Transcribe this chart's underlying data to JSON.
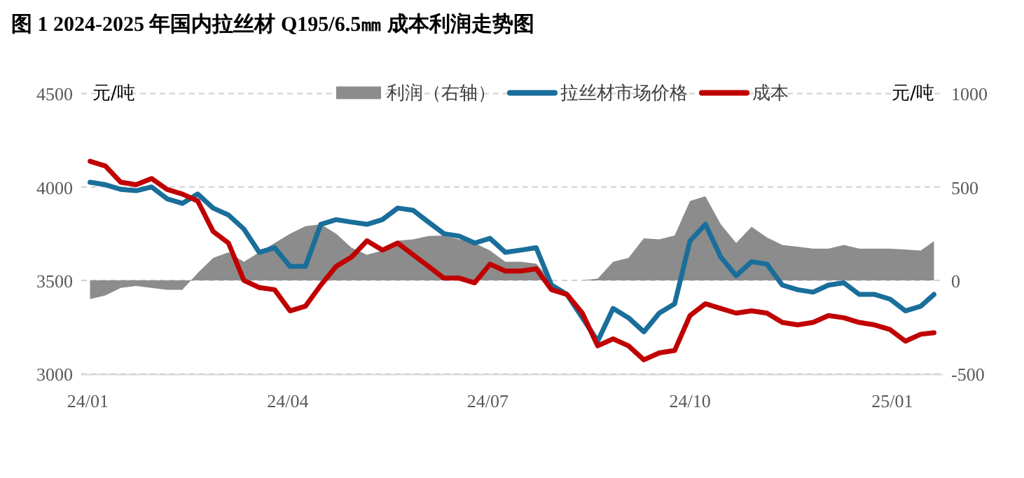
{
  "chart_data": {
    "type": "line",
    "title": "图 1 2024-2025 年国内拉丝材 Q195/6.5㎜ 成本利润走势图",
    "ylabel": "元/吨",
    "y2label": "元/吨",
    "x": [
      "2024-01-02",
      "2024-01-09",
      "2024-01-16",
      "2024-01-23",
      "2024-01-30",
      "2024-02-06",
      "2024-02-13",
      "2024-02-20",
      "2024-02-27",
      "2024-03-05",
      "2024-03-12",
      "2024-03-19",
      "2024-03-26",
      "2024-04-02",
      "2024-04-09",
      "2024-04-16",
      "2024-04-23",
      "2024-04-30",
      "2024-05-07",
      "2024-05-14",
      "2024-05-21",
      "2024-05-28",
      "2024-06-04",
      "2024-06-11",
      "2024-06-18",
      "2024-06-25",
      "2024-07-02",
      "2024-07-09",
      "2024-07-16",
      "2024-07-23",
      "2024-07-30",
      "2024-08-06",
      "2024-08-13",
      "2024-08-20",
      "2024-08-27",
      "2024-09-03",
      "2024-09-10",
      "2024-09-17",
      "2024-09-24",
      "2024-10-01",
      "2024-10-08",
      "2024-10-15",
      "2024-10-22",
      "2024-10-29",
      "2024-11-05",
      "2024-11-12",
      "2024-11-19",
      "2024-11-26",
      "2024-12-03",
      "2024-12-10",
      "2024-12-17",
      "2024-12-24",
      "2024-12-31",
      "2025-01-07",
      "2025-01-14",
      "2025-01-20"
    ],
    "series": [
      {
        "name": "利润（右轴）",
        "type": "area",
        "axis": "y2",
        "color": "#8c8c8c",
        "values": [
          -100,
          -80,
          -40,
          -30,
          -40,
          -50,
          -50,
          40,
          120,
          150,
          100,
          150,
          200,
          250,
          290,
          300,
          250,
          175,
          137,
          160,
          212,
          220,
          237,
          240,
          220,
          200,
          160,
          100,
          100,
          90,
          0,
          0,
          0,
          10,
          100,
          120,
          225,
          220,
          240,
          425,
          450,
          300,
          200,
          287,
          230,
          190,
          180,
          170,
          170,
          190,
          170,
          170,
          170,
          165,
          160,
          210
        ]
      },
      {
        "name": "拉丝材市场价格",
        "color": "#1a6e9a",
        "values": [
          4025,
          4012,
          3987,
          3980,
          4000,
          3937,
          3912,
          3962,
          3887,
          3850,
          3775,
          3650,
          3675,
          3575,
          3575,
          3800,
          3825,
          3812,
          3800,
          3825,
          3887,
          3875,
          3812,
          3750,
          3737,
          3700,
          3725,
          3650,
          3662,
          3675,
          3475,
          3425,
          3300,
          3175,
          3350,
          3300,
          3225,
          3325,
          3375,
          3712,
          3800,
          3625,
          3525,
          3600,
          3587,
          3475,
          3450,
          3437,
          3475,
          3487,
          3425,
          3425,
          3400,
          3337,
          3362,
          3425
        ]
      },
      {
        "name": "成本",
        "color": "#c00000",
        "values": [
          4137,
          4112,
          4025,
          4012,
          4045,
          3987,
          3962,
          3925,
          3762,
          3700,
          3500,
          3462,
          3450,
          3337,
          3362,
          3475,
          3575,
          3625,
          3712,
          3662,
          3700,
          3637,
          3575,
          3512,
          3512,
          3487,
          3587,
          3550,
          3550,
          3562,
          3450,
          3425,
          3325,
          3150,
          3187,
          3150,
          3075,
          3112,
          3125,
          3312,
          3375,
          3350,
          3325,
          3337,
          3325,
          3275,
          3262,
          3275,
          3312,
          3300,
          3275,
          3262,
          3237,
          3175,
          3212,
          3220
        ]
      }
    ],
    "xlim": [
      "2023-12-29",
      "2025-01-24"
    ],
    "xticks": [
      {
        "value": "2024-01-01",
        "label": "24/01"
      },
      {
        "value": "2024-04-01",
        "label": "24/04"
      },
      {
        "value": "2024-07-01",
        "label": "24/07"
      },
      {
        "value": "2024-10-01",
        "label": "24/10"
      },
      {
        "value": "2025-01-01",
        "label": "25/01"
      }
    ],
    "ylim": [
      3000,
      4500
    ],
    "yticks": [
      3000,
      3500,
      4000,
      4500
    ],
    "y2lim": [
      -500,
      1000
    ],
    "y2ticks": [
      {
        "value": -500,
        "label": "-500"
      },
      0,
      500,
      1000
    ],
    "grid": "y",
    "legend": "top",
    "marker": "none",
    "line_style": "solid"
  }
}
